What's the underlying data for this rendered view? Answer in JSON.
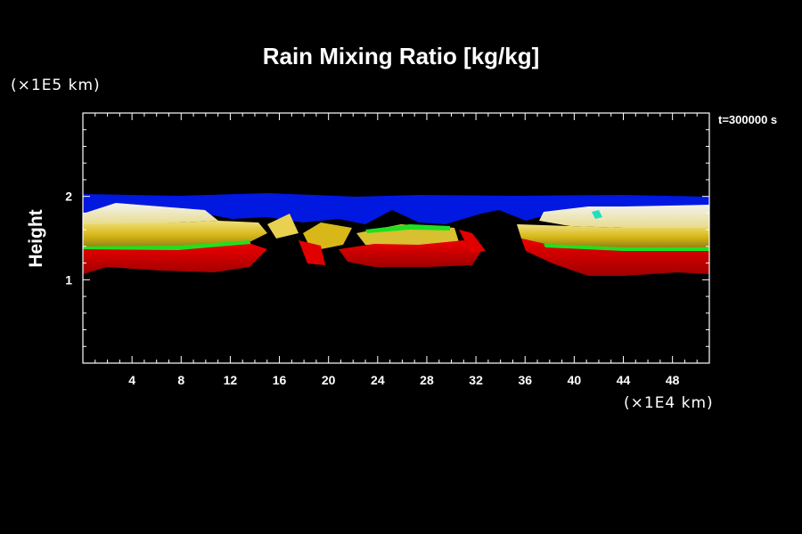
{
  "chart_data": {
    "type": "heatmap",
    "title": "Rain Mixing Ratio [kg/kg]",
    "ylabel": "Height",
    "xlabel": "",
    "x_unit": "(×1E4 km)",
    "y_unit": "(×1E5 km)",
    "time_label": "t=300000 s",
    "xlim": [
      0,
      51
    ],
    "ylim": [
      0,
      3
    ],
    "x_ticks": [
      "4",
      "8",
      "12",
      "16",
      "20",
      "24",
      "28",
      "32",
      "36",
      "40",
      "44",
      "48"
    ],
    "y_ticks": [
      "1",
      "2"
    ],
    "colors": {
      "blue": "#0000e0",
      "white": "#e8e8e8",
      "yellow": "#e0c020",
      "olive": "#9a8a1a",
      "green": "#10e010",
      "red": "#e00000",
      "darkred": "#900000"
    }
  }
}
